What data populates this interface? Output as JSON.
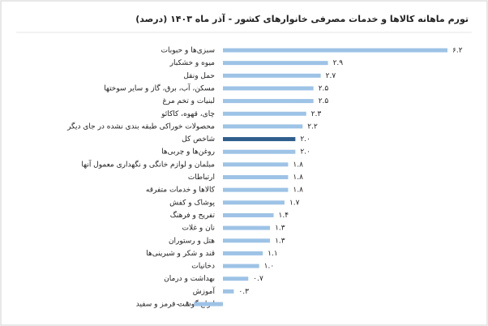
{
  "chart_data": {
    "type": "bar",
    "orientation": "horizontal",
    "title": "تورم ماهانه کالاها و خدمات مصرفی خانوارهای کشور - آذر ماه ۱۴۰۳ (درصد)",
    "categories": [
      "سبزی‌ها و حبوبات",
      "میوه و خشکبار",
      "حمل ونقل",
      "مسکن، آب، برق، گاز و سایر سوختها",
      "لبنیات و تخم مرغ",
      "چای، قهوه، کاکائو",
      "محصولات خوراکی طبقه بندی نشده در جای دیگر",
      "شاخص کل",
      "روغن‌ها و چربی‌ها",
      "مبلمان و لوازم خانگی و نگهداری معمول آنها",
      "ارتباطات",
      "کالاها و خدمات متفرقه",
      "پوشاک و کفش",
      "تفریح و فرهنگ",
      "نان و غلات",
      "هتل و رستوران",
      "قند و شکر و شیرینی‌ها",
      "دخانیات",
      "بهداشت و درمان",
      "آموزش",
      "انواع گوشت قرمز و سفید"
    ],
    "values": [
      6.2,
      2.9,
      2.7,
      2.5,
      2.5,
      2.3,
      2.2,
      2.0,
      2.0,
      1.8,
      1.8,
      1.8,
      1.7,
      1.4,
      1.3,
      1.3,
      1.1,
      1.0,
      0.7,
      0.3,
      -0.8
    ],
    "value_labels": [
      "۶.۲",
      "۲.۹",
      "۲.۷",
      "۲.۵",
      "۲.۵",
      "۲.۳",
      "۲.۲",
      "۲.۰",
      "۲.۰",
      "۱.۸",
      "۱.۸",
      "۱.۸",
      "۱.۷",
      "۱.۴",
      "۱.۳",
      "۱.۳",
      "۱.۱",
      "۱.۰",
      "۰.۷",
      "۰.۳",
      "-۰.۸"
    ],
    "colors": [
      "#9dc3e6",
      "#9dc3e6",
      "#9dc3e6",
      "#9dc3e6",
      "#9dc3e6",
      "#9dc3e6",
      "#9dc3e6",
      "#2e5e8e",
      "#9dc3e6",
      "#9dc3e6",
      "#9dc3e6",
      "#9dc3e6",
      "#9dc3e6",
      "#9dc3e6",
      "#9dc3e6",
      "#9dc3e6",
      "#9dc3e6",
      "#9dc3e6",
      "#9dc3e6",
      "#9dc3e6",
      "#9dc3e6"
    ]
  }
}
